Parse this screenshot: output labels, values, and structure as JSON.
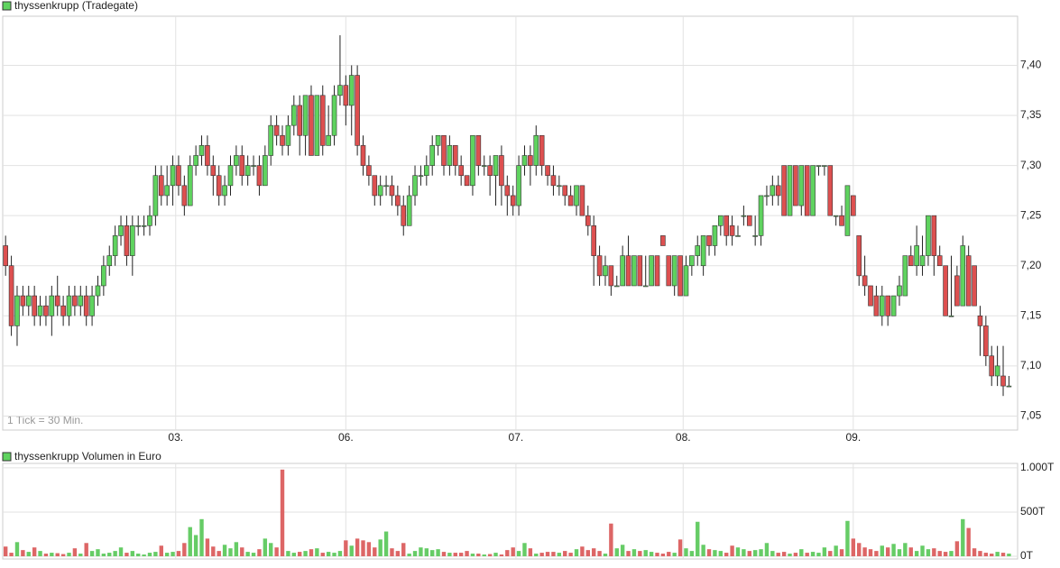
{
  "chart_data": [
    {
      "type": "candlestick",
      "title": "thyssenkrupp (Tradegate)",
      "annotation": "1 Tick = 30 Min.",
      "up_color": "#5fd35f",
      "down_color": "#dd5050",
      "grid": true,
      "xlim": [
        -0.5,
        175.5
      ],
      "xticks": [
        {
          "value": 29.5,
          "label": "03."
        },
        {
          "value": 59,
          "label": "06."
        },
        {
          "value": 88.5,
          "label": "07."
        },
        {
          "value": 117.5,
          "label": "08."
        },
        {
          "value": 147,
          "label": "09."
        }
      ],
      "ylim": [
        7.036,
        7.449
      ],
      "yticks": [
        {
          "value": 7.05,
          "label": "7,05"
        },
        {
          "value": 7.1,
          "label": "7,10"
        },
        {
          "value": 7.15,
          "label": "7,15"
        },
        {
          "value": 7.2,
          "label": "7,20"
        },
        {
          "value": 7.25,
          "label": "7,25"
        },
        {
          "value": 7.3,
          "label": "7,30"
        },
        {
          "value": 7.35,
          "label": "7,35"
        },
        {
          "value": 7.4,
          "label": "7,40"
        }
      ],
      "ohlc": [
        [
          7.22,
          7.23,
          7.19,
          7.2
        ],
        [
          7.2,
          7.21,
          7.13,
          7.14
        ],
        [
          7.14,
          7.18,
          7.12,
          7.17
        ],
        [
          7.17,
          7.18,
          7.15,
          7.16
        ],
        [
          7.16,
          7.18,
          7.15,
          7.17
        ],
        [
          7.17,
          7.18,
          7.14,
          7.15
        ],
        [
          7.15,
          7.17,
          7.14,
          7.16
        ],
        [
          7.16,
          7.17,
          7.14,
          7.15
        ],
        [
          7.15,
          7.18,
          7.13,
          7.17
        ],
        [
          7.17,
          7.19,
          7.15,
          7.16
        ],
        [
          7.16,
          7.17,
          7.14,
          7.15
        ],
        [
          7.15,
          7.18,
          7.14,
          7.17
        ],
        [
          7.17,
          7.18,
          7.15,
          7.16
        ],
        [
          7.16,
          7.18,
          7.15,
          7.17
        ],
        [
          7.17,
          7.18,
          7.14,
          7.15
        ],
        [
          7.15,
          7.18,
          7.14,
          7.17
        ],
        [
          7.17,
          7.19,
          7.16,
          7.18
        ],
        [
          7.18,
          7.21,
          7.17,
          7.2
        ],
        [
          7.2,
          7.22,
          7.19,
          7.21
        ],
        [
          7.21,
          7.24,
          7.2,
          7.23
        ],
        [
          7.23,
          7.25,
          7.22,
          7.24
        ],
        [
          7.24,
          7.25,
          7.2,
          7.21
        ],
        [
          7.21,
          7.25,
          7.19,
          7.24
        ],
        [
          7.24,
          7.25,
          7.23,
          7.24
        ],
        [
          7.24,
          7.25,
          7.23,
          7.24
        ],
        [
          7.24,
          7.26,
          7.23,
          7.25
        ],
        [
          7.25,
          7.3,
          7.24,
          7.29
        ],
        [
          7.29,
          7.3,
          7.26,
          7.27
        ],
        [
          7.27,
          7.3,
          7.26,
          7.28
        ],
        [
          7.28,
          7.31,
          7.26,
          7.3
        ],
        [
          7.3,
          7.31,
          7.27,
          7.28
        ],
        [
          7.28,
          7.29,
          7.25,
          7.26
        ],
        [
          7.26,
          7.31,
          7.26,
          7.3
        ],
        [
          7.3,
          7.32,
          7.29,
          7.31
        ],
        [
          7.31,
          7.33,
          7.3,
          7.32
        ],
        [
          7.32,
          7.33,
          7.29,
          7.3
        ],
        [
          7.3,
          7.31,
          7.27,
          7.29
        ],
        [
          7.29,
          7.3,
          7.26,
          7.27
        ],
        [
          7.27,
          7.29,
          7.26,
          7.28
        ],
        [
          7.28,
          7.31,
          7.27,
          7.3
        ],
        [
          7.3,
          7.32,
          7.29,
          7.31
        ],
        [
          7.31,
          7.32,
          7.28,
          7.29
        ],
        [
          7.29,
          7.31,
          7.28,
          7.3
        ],
        [
          7.3,
          7.31,
          7.29,
          7.3
        ],
        [
          7.3,
          7.31,
          7.27,
          7.28
        ],
        [
          7.28,
          7.32,
          7.28,
          7.31
        ],
        [
          7.31,
          7.35,
          7.3,
          7.34
        ],
        [
          7.34,
          7.35,
          7.32,
          7.33
        ],
        [
          7.33,
          7.34,
          7.31,
          7.32
        ],
        [
          7.32,
          7.35,
          7.31,
          7.34
        ],
        [
          7.34,
          7.37,
          7.33,
          7.36
        ],
        [
          7.36,
          7.37,
          7.31,
          7.33
        ],
        [
          7.33,
          7.37,
          7.31,
          7.37
        ],
        [
          7.37,
          7.38,
          7.31,
          7.31
        ],
        [
          7.31,
          7.37,
          7.31,
          7.37
        ],
        [
          7.37,
          7.38,
          7.31,
          7.32
        ],
        [
          7.32,
          7.36,
          7.32,
          7.33
        ],
        [
          7.33,
          7.38,
          7.32,
          7.37
        ],
        [
          7.37,
          7.43,
          7.36,
          7.38
        ],
        [
          7.38,
          7.39,
          7.34,
          7.36
        ],
        [
          7.36,
          7.4,
          7.33,
          7.39
        ],
        [
          7.39,
          7.4,
          7.31,
          7.32
        ],
        [
          7.32,
          7.33,
          7.29,
          7.3
        ],
        [
          7.3,
          7.31,
          7.28,
          7.29
        ],
        [
          7.29,
          7.29,
          7.26,
          7.27
        ],
        [
          7.27,
          7.29,
          7.26,
          7.28
        ],
        [
          7.28,
          7.29,
          7.27,
          7.28
        ],
        [
          7.28,
          7.29,
          7.26,
          7.27
        ],
        [
          7.27,
          7.28,
          7.25,
          7.26
        ],
        [
          7.26,
          7.27,
          7.23,
          7.24
        ],
        [
          7.24,
          7.28,
          7.24,
          7.27
        ],
        [
          7.27,
          7.3,
          7.26,
          7.29
        ],
        [
          7.29,
          7.3,
          7.28,
          7.29
        ],
        [
          7.29,
          7.31,
          7.28,
          7.3
        ],
        [
          7.3,
          7.33,
          7.29,
          7.32
        ],
        [
          7.32,
          7.33,
          7.31,
          7.33
        ],
        [
          7.33,
          7.33,
          7.29,
          7.3
        ],
        [
          7.3,
          7.33,
          7.29,
          7.32
        ],
        [
          7.32,
          7.32,
          7.29,
          7.3
        ],
        [
          7.3,
          7.31,
          7.28,
          7.29
        ],
        [
          7.29,
          7.29,
          7.28,
          7.28
        ],
        [
          7.28,
          7.33,
          7.27,
          7.33
        ],
        [
          7.33,
          7.33,
          7.29,
          7.3
        ],
        [
          7.3,
          7.31,
          7.29,
          7.3
        ],
        [
          7.3,
          7.31,
          7.27,
          7.29
        ],
        [
          7.29,
          7.31,
          7.26,
          7.31
        ],
        [
          7.31,
          7.32,
          7.26,
          7.28
        ],
        [
          7.28,
          7.29,
          7.25,
          7.27
        ],
        [
          7.27,
          7.28,
          7.25,
          7.26
        ],
        [
          7.26,
          7.31,
          7.25,
          7.3
        ],
        [
          7.3,
          7.32,
          7.29,
          7.31
        ],
        [
          7.31,
          7.32,
          7.28,
          7.3
        ],
        [
          7.3,
          7.34,
          7.29,
          7.33
        ],
        [
          7.33,
          7.33,
          7.29,
          7.3
        ],
        [
          7.3,
          7.3,
          7.28,
          7.29
        ],
        [
          7.29,
          7.3,
          7.27,
          7.28
        ],
        [
          7.28,
          7.29,
          7.27,
          7.28
        ],
        [
          7.28,
          7.28,
          7.26,
          7.27
        ],
        [
          7.27,
          7.28,
          7.26,
          7.26
        ],
        [
          7.26,
          7.28,
          7.25,
          7.28
        ],
        [
          7.28,
          7.28,
          7.25,
          7.25
        ],
        [
          7.25,
          7.26,
          7.23,
          7.24
        ],
        [
          7.24,
          7.25,
          7.18,
          7.21
        ],
        [
          7.21,
          7.22,
          7.18,
          7.19
        ],
        [
          7.19,
          7.21,
          7.18,
          7.2
        ],
        [
          7.2,
          7.2,
          7.17,
          7.18
        ],
        [
          7.18,
          7.19,
          7.18,
          7.18
        ],
        [
          7.18,
          7.22,
          7.18,
          7.21
        ],
        [
          7.21,
          7.23,
          7.18,
          7.18
        ],
        [
          7.18,
          7.21,
          7.18,
          7.21
        ],
        [
          7.21,
          7.21,
          7.18,
          7.18
        ],
        [
          7.18,
          7.21,
          7.18,
          7.18
        ],
        [
          7.18,
          7.21,
          7.18,
          7.21
        ],
        [
          7.21,
          7.21,
          7.18,
          7.18
        ],
        [
          7.23,
          7.23,
          7.22,
          7.22
        ],
        [
          7.21,
          7.21,
          7.18,
          7.18
        ],
        [
          7.18,
          7.21,
          7.17,
          7.21
        ],
        [
          7.21,
          7.21,
          7.17,
          7.17
        ],
        [
          7.17,
          7.21,
          7.17,
          7.2
        ],
        [
          7.2,
          7.21,
          7.19,
          7.21
        ],
        [
          7.21,
          7.23,
          7.2,
          7.22
        ],
        [
          7.2,
          7.23,
          7.19,
          7.23
        ],
        [
          7.23,
          7.23,
          7.21,
          7.22
        ],
        [
          7.22,
          7.24,
          7.21,
          7.24
        ],
        [
          7.24,
          7.25,
          7.23,
          7.25
        ],
        [
          7.25,
          7.25,
          7.22,
          7.23
        ],
        [
          7.24,
          7.25,
          7.22,
          7.23
        ],
        [
          7.23,
          7.24,
          7.23,
          7.23
        ],
        [
          7.25,
          7.26,
          7.24,
          7.25
        ],
        [
          7.25,
          7.25,
          7.24,
          7.24
        ],
        [
          7.23,
          7.25,
          7.22,
          7.23
        ],
        [
          7.23,
          7.27,
          7.22,
          7.27
        ],
        [
          7.27,
          7.28,
          7.26,
          7.27
        ],
        [
          7.27,
          7.29,
          7.26,
          7.28
        ],
        [
          7.28,
          7.29,
          7.26,
          7.27
        ],
        [
          7.3,
          7.3,
          7.25,
          7.25
        ],
        [
          7.25,
          7.3,
          7.25,
          7.3
        ],
        [
          7.3,
          7.3,
          7.26,
          7.26
        ],
        [
          7.26,
          7.3,
          7.25,
          7.3
        ],
        [
          7.3,
          7.3,
          7.25,
          7.25
        ],
        [
          7.25,
          7.3,
          7.25,
          7.3
        ],
        [
          7.3,
          7.3,
          7.29,
          7.3
        ],
        [
          7.3,
          7.3,
          7.29,
          7.3
        ],
        [
          7.3,
          7.3,
          7.25,
          7.25
        ],
        [
          7.25,
          7.25,
          7.24,
          7.25
        ],
        [
          7.25,
          7.26,
          7.24,
          7.24
        ],
        [
          7.23,
          7.28,
          7.23,
          7.28
        ],
        [
          7.27,
          7.27,
          7.25,
          7.25
        ],
        [
          7.23,
          7.23,
          7.18,
          7.19
        ],
        [
          7.19,
          7.21,
          7.17,
          7.18
        ],
        [
          7.18,
          7.18,
          7.16,
          7.16
        ],
        [
          7.17,
          7.18,
          7.15,
          7.15
        ],
        [
          7.15,
          7.18,
          7.14,
          7.17
        ],
        [
          7.17,
          7.17,
          7.14,
          7.15
        ],
        [
          7.15,
          7.17,
          7.15,
          7.17
        ],
        [
          7.17,
          7.19,
          7.16,
          7.18
        ],
        [
          7.17,
          7.21,
          7.17,
          7.21
        ],
        [
          7.21,
          7.22,
          7.2,
          7.2
        ],
        [
          7.2,
          7.24,
          7.19,
          7.22
        ],
        [
          7.2,
          7.23,
          7.19,
          7.21
        ],
        [
          7.21,
          7.25,
          7.2,
          7.25
        ],
        [
          7.25,
          7.25,
          7.19,
          7.21
        ],
        [
          7.21,
          7.22,
          7.2,
          7.2
        ],
        [
          7.2,
          7.2,
          7.15,
          7.15
        ],
        [
          7.15,
          7.21,
          7.15,
          7.15
        ],
        [
          7.19,
          7.2,
          7.16,
          7.16
        ],
        [
          7.16,
          7.23,
          7.16,
          7.22
        ],
        [
          7.21,
          7.22,
          7.16,
          7.16
        ],
        [
          7.2,
          7.2,
          7.16,
          7.16
        ],
        [
          7.15,
          7.16,
          7.11,
          7.14
        ],
        [
          7.14,
          7.15,
          7.1,
          7.11
        ],
        [
          7.11,
          7.12,
          7.08,
          7.09
        ],
        [
          7.09,
          7.12,
          7.08,
          7.1
        ],
        [
          7.09,
          7.12,
          7.07,
          7.08
        ],
        [
          7.08,
          7.09,
          7.08,
          7.08
        ]
      ]
    },
    {
      "type": "bar",
      "title": "thyssenkrupp Volumen in Euro",
      "up_color": "#66cc66",
      "down_color": "#dd6666",
      "grid": true,
      "xlim": [
        -0.5,
        175.5
      ],
      "ylim": [
        0,
        1050
      ],
      "yticks": [
        {
          "value": 0,
          "label": "0T"
        },
        {
          "value": 500,
          "label": "500T"
        },
        {
          "value": 1000,
          "label": "1.000T"
        }
      ],
      "values": [
        110,
        40,
        160,
        70,
        50,
        100,
        60,
        30,
        40,
        35,
        25,
        40,
        90,
        30,
        150,
        60,
        80,
        30,
        40,
        60,
        100,
        40,
        60,
        30,
        20,
        40,
        50,
        120,
        40,
        50,
        60,
        150,
        330,
        240,
        420,
        200,
        110,
        60,
        130,
        90,
        160,
        100,
        50,
        40,
        80,
        200,
        150,
        100,
        980,
        60,
        40,
        50,
        60,
        80,
        90,
        40,
        50,
        40,
        60,
        180,
        120,
        200,
        180,
        160,
        100,
        190,
        280,
        90,
        60,
        150,
        30,
        60,
        100,
        90,
        70,
        80,
        50,
        40,
        40,
        40,
        60,
        30,
        30,
        20,
        25,
        40,
        20,
        70,
        100,
        60,
        150,
        90,
        30,
        40,
        50,
        50,
        40,
        60,
        40,
        80,
        110,
        70,
        90,
        60,
        30,
        370,
        90,
        130,
        60,
        80,
        60,
        70,
        50,
        40,
        30,
        50,
        40,
        190,
        90,
        60,
        390,
        130,
        80,
        70,
        60,
        40,
        120,
        100,
        80,
        60,
        70,
        80,
        150,
        60,
        40,
        50,
        30,
        40,
        80,
        40,
        50,
        40,
        100,
        60,
        120,
        80,
        400,
        200,
        150,
        100,
        80,
        60,
        120,
        100,
        140,
        80,
        150,
        100,
        60,
        120,
        80,
        90,
        60,
        50,
        60,
        170,
        420,
        320,
        90,
        60,
        40,
        30,
        50,
        40,
        30
      ]
    }
  ]
}
